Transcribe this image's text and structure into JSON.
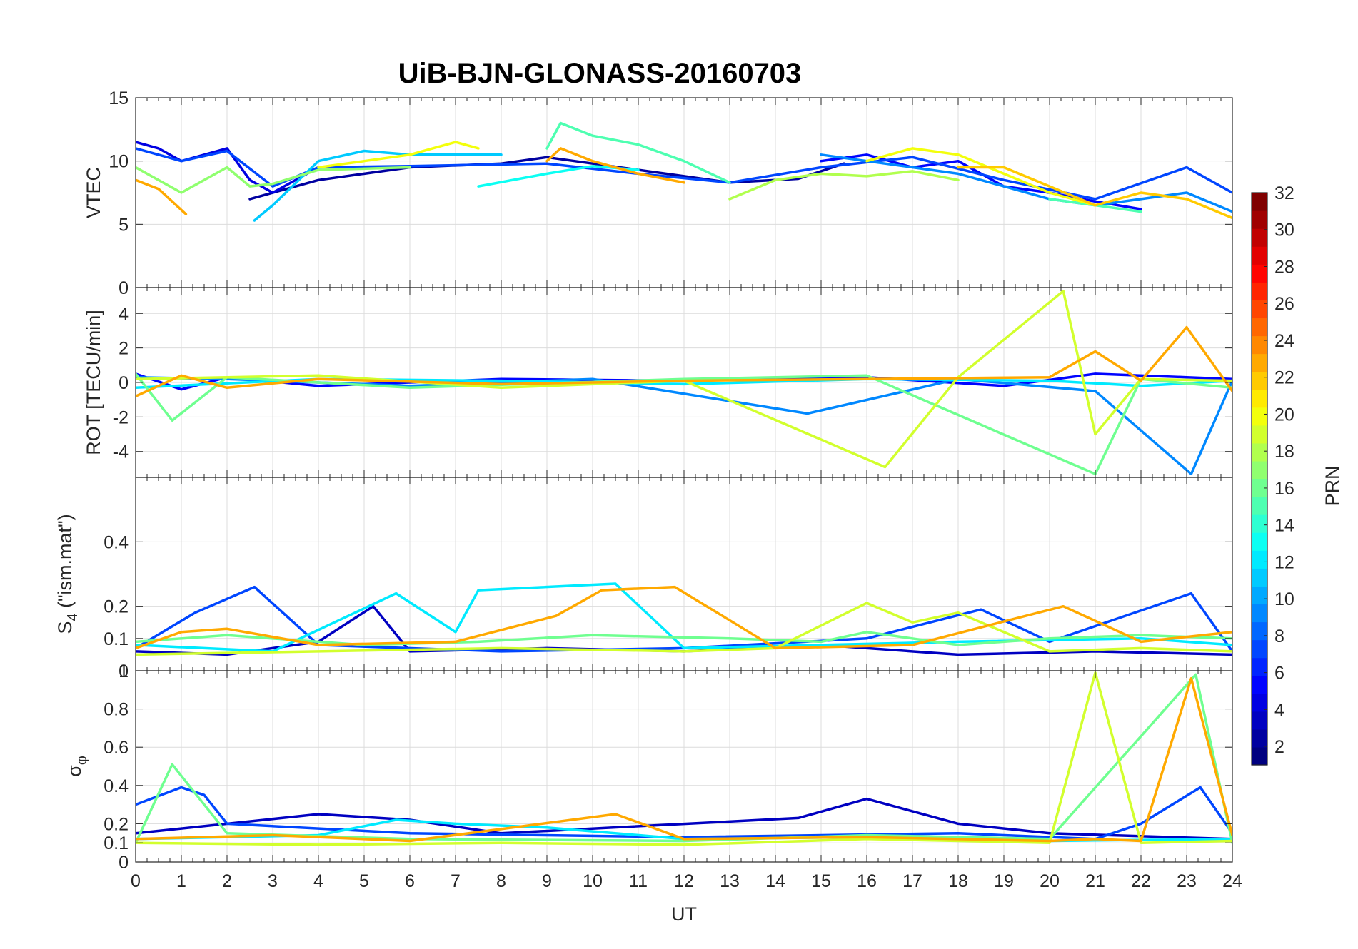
{
  "chart_data": {
    "type": "line",
    "title": "UiB-BJN-GLONASS-20160703",
    "xlabel": "UT",
    "x_range": [
      0,
      24
    ],
    "x_ticks": [
      "0",
      "1",
      "2",
      "3",
      "4",
      "5",
      "6",
      "7",
      "8",
      "9",
      "10",
      "11",
      "12",
      "13",
      "14",
      "15",
      "16",
      "17",
      "18",
      "19",
      "20",
      "21",
      "22",
      "23",
      "24"
    ],
    "grid": true,
    "colorbar": {
      "label": "PRN",
      "range": [
        1,
        32
      ],
      "ticks": [
        "2",
        "4",
        "6",
        "8",
        "10",
        "12",
        "14",
        "16",
        "18",
        "20",
        "22",
        "24",
        "26",
        "28",
        "30",
        "32"
      ],
      "colormap": "jet",
      "placement": "right"
    },
    "panels": [
      {
        "name": "vtec",
        "ylabel": "VTEC",
        "ylim": [
          0,
          15
        ],
        "y_ticks": [
          "0",
          "5",
          "10",
          "15"
        ],
        "series": [
          {
            "prn": 2,
            "x": [
              2.5,
              4,
              6,
              8,
              9,
              10,
              12,
              13,
              14.5,
              15.5
            ],
            "y": [
              7,
              8.5,
              9.5,
              9.8,
              10.3,
              9.8,
              8.8,
              8.3,
              8.6,
              9.8
            ]
          },
          {
            "prn": 4,
            "x": [
              0,
              0.5,
              1,
              1.5,
              2,
              2.5,
              3,
              4
            ],
            "y": [
              11.5,
              11,
              10,
              10.5,
              11,
              8.5,
              7.5,
              9.5
            ]
          },
          {
            "prn": 5,
            "x": [
              15,
              16,
              17,
              18,
              19,
              20,
              21,
              22
            ],
            "y": [
              10,
              10.5,
              9.5,
              10,
              8,
              7.5,
              6.8,
              6.2
            ]
          },
          {
            "prn": 7,
            "x": [
              0,
              1,
              2,
              3,
              4,
              6,
              9,
              11,
              13,
              15,
              17,
              19,
              21,
              23,
              24
            ],
            "y": [
              11,
              10,
              10.8,
              8,
              9.5,
              9.6,
              9.8,
              9,
              8.3,
              9.5,
              10.3,
              8.5,
              7,
              9.5,
              7.5
            ]
          },
          {
            "prn": 9,
            "x": [
              15,
              16,
              17,
              18,
              19,
              20,
              21,
              22,
              23,
              24
            ],
            "y": [
              10.5,
              10,
              9.5,
              9,
              8,
              7,
              6.5,
              7,
              7.5,
              6
            ]
          },
          {
            "prn": 11,
            "x": [
              2.6,
              3,
              4,
              5,
              6,
              8
            ],
            "y": [
              5.3,
              6.5,
              10,
              10.8,
              10.5,
              10.5
            ]
          },
          {
            "prn": 13,
            "x": [
              7.5,
              9,
              10,
              11
            ],
            "y": [
              8,
              9,
              9.6,
              9.3
            ]
          },
          {
            "prn": 15,
            "x": [
              9,
              9.3,
              10,
              11,
              12,
              13
            ],
            "y": [
              11,
              13,
              12,
              11.3,
              10,
              8.3
            ]
          },
          {
            "prn": 15,
            "x": [
              20,
              21,
              22
            ],
            "y": [
              7,
              6.5,
              6
            ]
          },
          {
            "prn": 17,
            "x": [
              0,
              0.5,
              1,
              2,
              2.5,
              3,
              4,
              6
            ],
            "y": [
              9.5,
              8.5,
              7.5,
              9.5,
              8,
              8.2,
              9.3,
              9.5
            ]
          },
          {
            "prn": 18,
            "x": [
              13,
              14,
              15,
              16,
              17,
              18
            ],
            "y": [
              7,
              8.5,
              9,
              8.8,
              9.2,
              8.5
            ]
          },
          {
            "prn": 20,
            "x": [
              4,
              5,
              6,
              6.5,
              7,
              7.5
            ],
            "y": [
              9.5,
              10,
              10.5,
              11,
              11.5,
              11
            ]
          },
          {
            "prn": 20,
            "x": [
              16,
              17,
              18,
              19,
              20,
              21
            ],
            "y": [
              10,
              11,
              10.5,
              9,
              7.5,
              6.5
            ]
          },
          {
            "prn": 22,
            "x": [
              18,
              19,
              20,
              21,
              22,
              23,
              24
            ],
            "y": [
              9.5,
              9.5,
              8,
              6.5,
              7.5,
              7,
              5.5
            ]
          },
          {
            "prn": 23,
            "x": [
              0,
              0.5,
              1.1
            ],
            "y": [
              8.5,
              7.8,
              5.8
            ]
          },
          {
            "prn": 23,
            "x": [
              9,
              9.3,
              10,
              11,
              12
            ],
            "y": [
              10,
              11,
              10,
              9,
              8.3
            ]
          }
        ]
      },
      {
        "name": "rot",
        "ylabel": "ROT [TECU/min]",
        "ylim": [
          -5.5,
          5.5
        ],
        "y_ticks": [
          "-4",
          "-2",
          "0",
          "2",
          "4"
        ],
        "series": [
          {
            "prn": 5,
            "x": [
              0,
              1,
              2,
              4,
              8,
              12,
              16,
              19,
              21,
              23,
              24
            ],
            "y": [
              0.5,
              -0.4,
              0.3,
              -0.2,
              0.2,
              0.1,
              0.3,
              -0.2,
              0.5,
              0.3,
              0.2
            ]
          },
          {
            "prn": 9,
            "x": [
              0,
              2,
              6,
              10,
              14.7,
              18,
              21,
              23.1,
              24
            ],
            "y": [
              0.3,
              0.2,
              -0.2,
              0.2,
              -1.8,
              0.2,
              -0.5,
              -5.3,
              0.1
            ]
          },
          {
            "prn": 12,
            "x": [
              0,
              4,
              8,
              12,
              16,
              20,
              22,
              24
            ],
            "y": [
              -0.3,
              0.2,
              0.1,
              -0.1,
              0.2,
              0.1,
              -0.2,
              0.1
            ]
          },
          {
            "prn": 16,
            "x": [
              0,
              0.8,
              2,
              6,
              12,
              16,
              21,
              22,
              24
            ],
            "y": [
              0.5,
              -2.2,
              0.3,
              -0.3,
              0.2,
              0.4,
              -5.3,
              0.2,
              -0.3
            ]
          },
          {
            "prn": 19,
            "x": [
              0,
              4,
              8,
              12,
              16.4,
              18,
              20.3,
              21,
              22,
              24
            ],
            "y": [
              0.2,
              0.4,
              -0.3,
              0.1,
              -4.9,
              0.3,
              5.3,
              -3,
              0.2,
              0.1
            ]
          },
          {
            "prn": 23,
            "x": [
              0,
              1,
              2,
              4,
              8,
              12,
              16,
              20,
              21,
              22,
              23,
              24
            ],
            "y": [
              -0.8,
              0.4,
              -0.3,
              0.2,
              -0.1,
              0.1,
              0.2,
              0.3,
              1.8,
              0.1,
              3.2,
              -0.5
            ]
          }
        ]
      },
      {
        "name": "s4",
        "ylabel": "S4 (\"ism.mat\")",
        "ylabel_main": "S",
        "ylabel_sub": "4",
        "ylabel_rest": " (\"ism.mat\")",
        "ylim": [
          0,
          0.6
        ],
        "y_ticks": [
          "0",
          "0.1",
          "0.2",
          "0.4"
        ],
        "series": [
          {
            "prn": 3,
            "x": [
              0,
              2,
              4,
              5.2,
              6,
              9,
              12,
              15,
              18,
              21,
              24
            ],
            "y": [
              0.06,
              0.05,
              0.09,
              0.2,
              0.06,
              0.07,
              0.06,
              0.08,
              0.05,
              0.06,
              0.05
            ]
          },
          {
            "prn": 7,
            "x": [
              0,
              1.3,
              2.6,
              4,
              8,
              12,
              16,
              18.5,
              20,
              23.1,
              24
            ],
            "y": [
              0.07,
              0.18,
              0.26,
              0.08,
              0.06,
              0.07,
              0.1,
              0.19,
              0.09,
              0.24,
              0.06
            ]
          },
          {
            "prn": 12,
            "x": [
              0,
              3,
              5.7,
              7,
              7.5,
              10.5,
              12,
              15,
              18,
              22,
              24
            ],
            "y": [
              0.08,
              0.06,
              0.24,
              0.12,
              0.25,
              0.27,
              0.07,
              0.08,
              0.09,
              0.1,
              0.08
            ]
          },
          {
            "prn": 16,
            "x": [
              0,
              2,
              5,
              7.5,
              10,
              13,
              15,
              16,
              18,
              20,
              22,
              24
            ],
            "y": [
              0.09,
              0.11,
              0.08,
              0.09,
              0.11,
              0.1,
              0.09,
              0.12,
              0.08,
              0.1,
              0.11,
              0.1
            ]
          },
          {
            "prn": 19,
            "x": [
              0,
              4,
              8,
              12,
              14,
              16,
              17,
              18,
              20,
              22,
              24
            ],
            "y": [
              0.05,
              0.06,
              0.07,
              0.06,
              0.07,
              0.21,
              0.15,
              0.18,
              0.06,
              0.07,
              0.06
            ]
          },
          {
            "prn": 23,
            "x": [
              0,
              1,
              2,
              4,
              7,
              9.2,
              10.2,
              11.8,
              14,
              17,
              20.3,
              22,
              24
            ],
            "y": [
              0.07,
              0.12,
              0.13,
              0.08,
              0.09,
              0.17,
              0.25,
              0.26,
              0.07,
              0.08,
              0.2,
              0.09,
              0.12
            ]
          }
        ]
      },
      {
        "name": "sigma",
        "ylabel": "σφ",
        "ylabel_main": "σ",
        "ylabel_sub": "φ",
        "ylim": [
          0,
          1
        ],
        "y_ticks": [
          "0",
          "0.1",
          "0.2",
          "0.4",
          "0.6",
          "0.8",
          "1"
        ],
        "series": [
          {
            "prn": 3,
            "x": [
              0,
              4,
              6,
              8,
              14.5,
              16,
              18,
              20,
              24
            ],
            "y": [
              0.15,
              0.25,
              0.22,
              0.15,
              0.23,
              0.33,
              0.2,
              0.15,
              0.12
            ]
          },
          {
            "prn": 7,
            "x": [
              0,
              1,
              1.5,
              2,
              6,
              12,
              18,
              21,
              22,
              23.3,
              24
            ],
            "y": [
              0.3,
              0.39,
              0.35,
              0.2,
              0.15,
              0.13,
              0.15,
              0.12,
              0.2,
              0.39,
              0.15
            ]
          },
          {
            "prn": 12,
            "x": [
              0,
              4,
              5.7,
              7,
              9,
              12,
              16,
              20,
              24
            ],
            "y": [
              0.12,
              0.14,
              0.22,
              0.2,
              0.18,
              0.12,
              0.13,
              0.11,
              0.12
            ]
          },
          {
            "prn": 16,
            "x": [
              0,
              0.8,
              2,
              6,
              12,
              16,
              20,
              23.2,
              24
            ],
            "y": [
              0.1,
              0.51,
              0.15,
              0.12,
              0.11,
              0.14,
              0.12,
              0.98,
              0.1
            ]
          },
          {
            "prn": 19,
            "x": [
              0,
              4,
              8,
              12,
              16,
              20,
              21,
              22,
              24
            ],
            "y": [
              0.1,
              0.09,
              0.1,
              0.09,
              0.12,
              0.1,
              0.99,
              0.1,
              0.11
            ]
          },
          {
            "prn": 23,
            "x": [
              0,
              3,
              6,
              10.5,
              12,
              16,
              20,
              21,
              22,
              23.1,
              24
            ],
            "y": [
              0.12,
              0.14,
              0.11,
              0.25,
              0.12,
              0.13,
              0.11,
              0.12,
              0.11,
              0.96,
              0.14
            ]
          }
        ]
      }
    ]
  }
}
